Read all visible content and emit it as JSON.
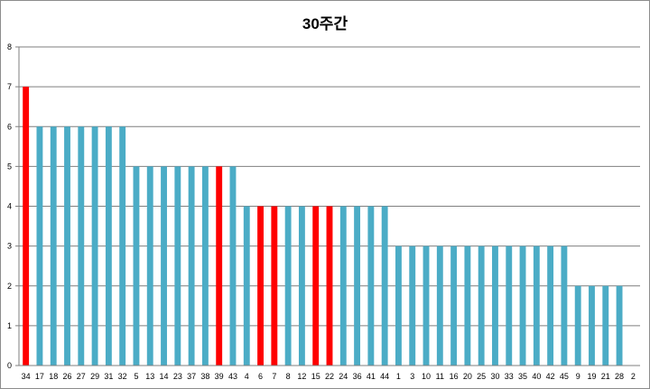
{
  "chart_data": {
    "type": "bar",
    "title": "30주간",
    "xlabel": "",
    "ylabel": "",
    "ylim": [
      0,
      8
    ],
    "yticks": [
      "0",
      "1",
      "2",
      "3",
      "4",
      "5",
      "6",
      "7",
      "8"
    ],
    "grid": true,
    "legend": "none",
    "colors": {
      "normal": "#4bacc6",
      "highlight": "#ff0000",
      "grid": "#7f7f7f"
    },
    "categories": [
      "34",
      "17",
      "18",
      "26",
      "27",
      "29",
      "31",
      "32",
      "5",
      "13",
      "14",
      "23",
      "37",
      "38",
      "39",
      "43",
      "4",
      "6",
      "7",
      "8",
      "12",
      "15",
      "22",
      "24",
      "36",
      "41",
      "44",
      "1",
      "3",
      "10",
      "11",
      "16",
      "20",
      "25",
      "30",
      "33",
      "35",
      "40",
      "42",
      "45",
      "9",
      "19",
      "21",
      "28",
      "2"
    ],
    "values": [
      7,
      6,
      6,
      6,
      6,
      6,
      6,
      6,
      5,
      5,
      5,
      5,
      5,
      5,
      5,
      5,
      4,
      4,
      4,
      4,
      4,
      4,
      4,
      4,
      4,
      4,
      4,
      3,
      3,
      3,
      3,
      3,
      3,
      3,
      3,
      3,
      3,
      3,
      3,
      3,
      2,
      2,
      2,
      2,
      0
    ],
    "highlighted": [
      "34",
      "39",
      "6",
      "7",
      "15",
      "22"
    ]
  }
}
